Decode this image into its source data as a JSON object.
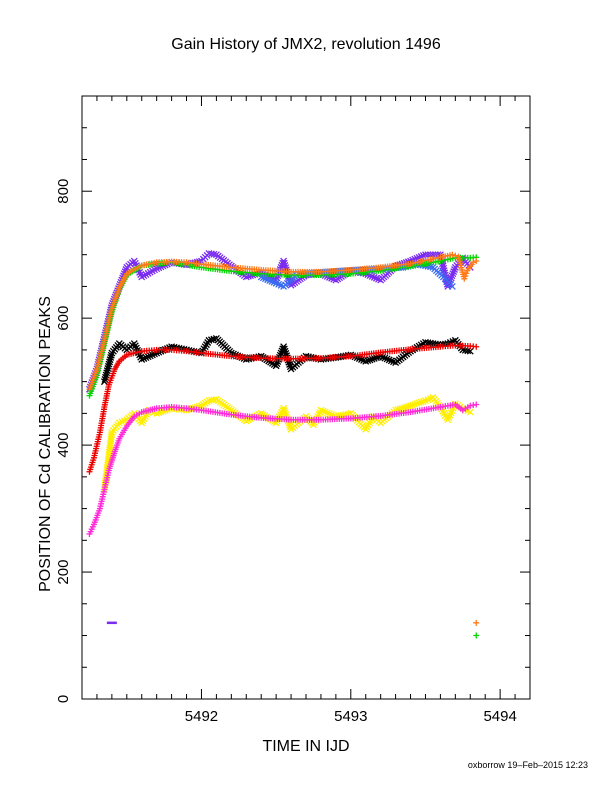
{
  "chart_data": {
    "type": "scatter",
    "title": "Gain History of JMX2, revolution 1496",
    "xlabel": "TIME IN IJD",
    "ylabel": "POSITION OF Cd CALIBRATION PEAKS",
    "xlim": [
      5491.2,
      5494.2
    ],
    "ylim": [
      0,
      950
    ],
    "xticks": [
      5492,
      5493,
      5494
    ],
    "xtick_labels": [
      "5492",
      "5493",
      "5494"
    ],
    "yticks": [
      0,
      200,
      400,
      600,
      800
    ],
    "ytick_labels": [
      "0",
      "200",
      "400",
      "600",
      "800"
    ],
    "grid": false,
    "legend": "none",
    "series": [
      {
        "color": "#7a2cf0",
        "marker": "x",
        "points": [
          [
            5491.25,
            488
          ],
          [
            5491.3,
            520
          ],
          [
            5491.35,
            570
          ],
          [
            5491.4,
            620
          ],
          [
            5491.45,
            650
          ],
          [
            5491.5,
            680
          ],
          [
            5491.55,
            690
          ],
          [
            5491.6,
            665
          ],
          [
            5491.7,
            678
          ],
          [
            5491.8,
            688
          ],
          [
            5491.9,
            684
          ],
          [
            5492.0,
            690
          ],
          [
            5492.05,
            702
          ],
          [
            5492.1,
            700
          ],
          [
            5492.2,
            682
          ],
          [
            5492.3,
            665
          ],
          [
            5492.4,
            672
          ],
          [
            5492.5,
            660
          ],
          [
            5492.55,
            690
          ],
          [
            5492.6,
            652
          ],
          [
            5492.7,
            668
          ],
          [
            5492.8,
            670
          ],
          [
            5492.9,
            660
          ],
          [
            5493.0,
            675
          ],
          [
            5493.1,
            670
          ],
          [
            5493.2,
            660
          ],
          [
            5493.3,
            682
          ],
          [
            5493.4,
            690
          ],
          [
            5493.5,
            700
          ],
          [
            5493.6,
            700
          ],
          [
            5493.65,
            650
          ],
          [
            5493.7,
            680
          ],
          [
            5493.75,
            695
          ],
          [
            5493.8,
            680
          ]
        ]
      },
      {
        "color": "#3a6cf0",
        "marker": "x",
        "points": [
          [
            5492.4,
            665
          ],
          [
            5492.5,
            655
          ],
          [
            5492.55,
            650
          ],
          [
            5492.65,
            670
          ],
          [
            5493.35,
            680
          ],
          [
            5493.45,
            685
          ],
          [
            5493.55,
            680
          ],
          [
            5493.62,
            665
          ],
          [
            5493.68,
            650
          ]
        ]
      },
      {
        "color": "#00d800",
        "marker": "+",
        "points": [
          [
            5491.25,
            478
          ],
          [
            5491.3,
            510
          ],
          [
            5491.35,
            560
          ],
          [
            5491.4,
            610
          ],
          [
            5491.45,
            645
          ],
          [
            5491.5,
            668
          ],
          [
            5491.6,
            683
          ],
          [
            5491.8,
            688
          ],
          [
            5492.0,
            680
          ],
          [
            5492.2,
            674
          ],
          [
            5492.4,
            670
          ],
          [
            5492.6,
            668
          ],
          [
            5492.8,
            668
          ],
          [
            5493.0,
            670
          ],
          [
            5493.2,
            675
          ],
          [
            5493.4,
            682
          ],
          [
            5493.6,
            690
          ],
          [
            5493.7,
            695
          ],
          [
            5493.8,
            695
          ],
          [
            5493.84,
            696
          ],
          [
            5493.84,
            100
          ]
        ]
      },
      {
        "color": "#ff7a1a",
        "marker": "+",
        "points": [
          [
            5491.25,
            488
          ],
          [
            5491.3,
            520
          ],
          [
            5491.35,
            565
          ],
          [
            5491.4,
            615
          ],
          [
            5491.45,
            648
          ],
          [
            5491.5,
            670
          ],
          [
            5491.6,
            683
          ],
          [
            5491.7,
            688
          ],
          [
            5491.8,
            689
          ],
          [
            5491.9,
            688
          ],
          [
            5492.0,
            685
          ],
          [
            5492.2,
            680
          ],
          [
            5492.4,
            676
          ],
          [
            5492.6,
            673
          ],
          [
            5492.8,
            673
          ],
          [
            5493.0,
            676
          ],
          [
            5493.2,
            680
          ],
          [
            5493.4,
            686
          ],
          [
            5493.5,
            691
          ],
          [
            5493.6,
            696
          ],
          [
            5493.68,
            700
          ],
          [
            5493.72,
            697
          ],
          [
            5493.76,
            662
          ],
          [
            5493.78,
            675
          ],
          [
            5493.82,
            688
          ],
          [
            5493.84,
            690
          ],
          [
            5493.84,
            120
          ]
        ]
      },
      {
        "color": "#000000",
        "marker": "x",
        "points": [
          [
            5491.35,
            500
          ],
          [
            5491.4,
            545
          ],
          [
            5491.45,
            560
          ],
          [
            5491.5,
            550
          ],
          [
            5491.55,
            560
          ],
          [
            5491.6,
            535
          ],
          [
            5491.7,
            545
          ],
          [
            5491.8,
            555
          ],
          [
            5491.9,
            550
          ],
          [
            5492.0,
            545
          ],
          [
            5492.05,
            565
          ],
          [
            5492.1,
            568
          ],
          [
            5492.2,
            545
          ],
          [
            5492.3,
            535
          ],
          [
            5492.4,
            540
          ],
          [
            5492.5,
            525
          ],
          [
            5492.55,
            555
          ],
          [
            5492.6,
            520
          ],
          [
            5492.7,
            540
          ],
          [
            5492.8,
            535
          ],
          [
            5492.9,
            538
          ],
          [
            5493.0,
            542
          ],
          [
            5493.1,
            532
          ],
          [
            5493.2,
            540
          ],
          [
            5493.3,
            530
          ],
          [
            5493.4,
            548
          ],
          [
            5493.5,
            562
          ],
          [
            5493.6,
            558
          ],
          [
            5493.65,
            560
          ],
          [
            5493.7,
            565
          ],
          [
            5493.75,
            550
          ],
          [
            5493.8,
            548
          ]
        ]
      },
      {
        "color": "#ee0000",
        "marker": "+",
        "points": [
          [
            5491.25,
            358
          ],
          [
            5491.28,
            380
          ],
          [
            5491.32,
            420
          ],
          [
            5491.35,
            460
          ],
          [
            5491.38,
            495
          ],
          [
            5491.42,
            520
          ],
          [
            5491.45,
            532
          ],
          [
            5491.5,
            542
          ],
          [
            5491.6,
            548
          ],
          [
            5491.7,
            550
          ],
          [
            5491.8,
            550
          ],
          [
            5491.9,
            548
          ],
          [
            5492.0,
            545
          ],
          [
            5492.2,
            540
          ],
          [
            5492.4,
            537
          ],
          [
            5492.6,
            536
          ],
          [
            5492.8,
            537
          ],
          [
            5493.0,
            540
          ],
          [
            5493.2,
            546
          ],
          [
            5493.4,
            551
          ],
          [
            5493.6,
            555
          ],
          [
            5493.7,
            557
          ],
          [
            5493.8,
            556
          ],
          [
            5493.84,
            555
          ]
        ]
      },
      {
        "color": "#ffee00",
        "marker": "x",
        "points": [
          [
            5491.35,
            330
          ],
          [
            5491.4,
            420
          ],
          [
            5491.45,
            435
          ],
          [
            5491.5,
            440
          ],
          [
            5491.55,
            450
          ],
          [
            5491.6,
            435
          ],
          [
            5491.65,
            455
          ],
          [
            5491.7,
            450
          ],
          [
            5491.8,
            458
          ],
          [
            5491.9,
            455
          ],
          [
            5492.0,
            462
          ],
          [
            5492.05,
            470
          ],
          [
            5492.1,
            472
          ],
          [
            5492.2,
            455
          ],
          [
            5492.3,
            438
          ],
          [
            5492.4,
            450
          ],
          [
            5492.5,
            435
          ],
          [
            5492.55,
            458
          ],
          [
            5492.6,
            425
          ],
          [
            5492.7,
            445
          ],
          [
            5492.75,
            432
          ],
          [
            5492.8,
            455
          ],
          [
            5492.9,
            445
          ],
          [
            5493.0,
            450
          ],
          [
            5493.1,
            425
          ],
          [
            5493.15,
            445
          ],
          [
            5493.2,
            435
          ],
          [
            5493.3,
            455
          ],
          [
            5493.4,
            462
          ],
          [
            5493.5,
            470
          ],
          [
            5493.55,
            475
          ],
          [
            5493.6,
            460
          ],
          [
            5493.65,
            440
          ],
          [
            5493.7,
            465
          ],
          [
            5493.75,
            458
          ],
          [
            5493.8,
            452
          ]
        ]
      },
      {
        "color": "#ff2ad8",
        "marker": "+",
        "points": [
          [
            5491.25,
            260
          ],
          [
            5491.28,
            275
          ],
          [
            5491.32,
            300
          ],
          [
            5491.35,
            330
          ],
          [
            5491.38,
            360
          ],
          [
            5491.42,
            390
          ],
          [
            5491.45,
            410
          ],
          [
            5491.5,
            430
          ],
          [
            5491.55,
            445
          ],
          [
            5491.6,
            452
          ],
          [
            5491.7,
            458
          ],
          [
            5491.8,
            460
          ],
          [
            5491.9,
            458
          ],
          [
            5492.0,
            455
          ],
          [
            5492.2,
            448
          ],
          [
            5492.4,
            443
          ],
          [
            5492.6,
            440
          ],
          [
            5492.8,
            440
          ],
          [
            5493.0,
            442
          ],
          [
            5493.2,
            446
          ],
          [
            5493.4,
            452
          ],
          [
            5493.6,
            460
          ],
          [
            5493.7,
            464
          ],
          [
            5493.75,
            455
          ],
          [
            5493.8,
            462
          ],
          [
            5493.84,
            464
          ]
        ]
      },
      {
        "color": "#7a2cf0",
        "marker": "dash",
        "points": [
          [
            5491.4,
            120
          ]
        ]
      }
    ]
  },
  "footer": "oxborrow 19–Feb–2015 12:23"
}
